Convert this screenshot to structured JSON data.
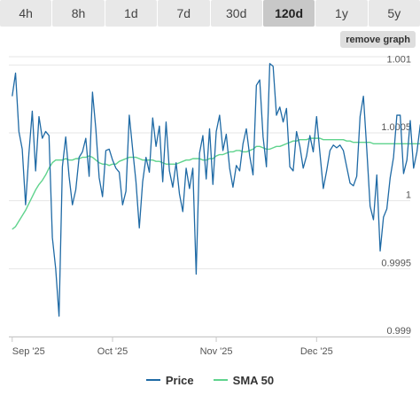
{
  "range_tabs": [
    {
      "label": "4h",
      "active": false
    },
    {
      "label": "8h",
      "active": false
    },
    {
      "label": "1d",
      "active": false
    },
    {
      "label": "7d",
      "active": false
    },
    {
      "label": "30d",
      "active": false
    },
    {
      "label": "120d",
      "active": true
    },
    {
      "label": "1y",
      "active": false
    },
    {
      "label": "5y",
      "active": false
    }
  ],
  "remove_graph_label": "remove graph",
  "legend": [
    {
      "label": "Price",
      "color": "#1f6aa5"
    },
    {
      "label": "SMA 50",
      "color": "#5fd38d"
    }
  ],
  "chart_data": {
    "type": "line",
    "x_tick_labels": [
      "Sep '25",
      "Oct '25",
      "Nov '25",
      "Dec '25"
    ],
    "x_tick_days": [
      0,
      30,
      61,
      91
    ],
    "x_range_days": [
      -1,
      119
    ],
    "y_ticks": [
      0.999,
      0.9995,
      1,
      1.0005,
      1.001
    ],
    "y_tick_labels": [
      "0.999",
      "0.9995",
      "1",
      "1.0005",
      "1.001"
    ],
    "ylim": [
      0.999,
      1.0011
    ],
    "grid": true,
    "series": [
      {
        "name": "Price",
        "color": "#1f6aa5",
        "values": [
          1.00077,
          1.00094,
          1.00051,
          1.00038,
          0.99997,
          1.00035,
          1.00066,
          1.00022,
          1.00062,
          1.00046,
          1.00051,
          1.00048,
          0.99973,
          0.9995,
          0.99915,
          1.00025,
          1.00047,
          1.00018,
          0.99997,
          1.00008,
          1.00032,
          1.00036,
          1.00046,
          1.00018,
          1.0008,
          1.00053,
          1.00017,
          1.00003,
          1.00037,
          1.00038,
          1.0003,
          1.00024,
          1.00021,
          0.99997,
          1.00007,
          1.00063,
          1.00038,
          1.00014,
          0.9998,
          1.00014,
          1.00032,
          1.00021,
          1.00061,
          1.0004,
          1.00055,
          1.00014,
          1.00058,
          1.00022,
          1.0001,
          1.00028,
          1.00005,
          0.99992,
          1.00024,
          1.00009,
          1.00024,
          0.99946,
          1.00035,
          1.00048,
          1.00016,
          1.00053,
          1.00012,
          1.00051,
          1.00063,
          1.00037,
          1.00049,
          1.00024,
          1.0001,
          1.00026,
          1.00022,
          1.00042,
          1.00053,
          1.00033,
          1.00019,
          1.00085,
          1.00089,
          1.00047,
          1.00025,
          1.00101,
          1.00099,
          1.00063,
          1.00069,
          1.00058,
          1.00068,
          1.00025,
          1.00022,
          1.00051,
          1.0004,
          1.00024,
          1.00033,
          1.00048,
          1.00036,
          1.00062,
          1.00035,
          1.00009,
          1.00022,
          1.00037,
          1.00041,
          1.00039,
          1.00041,
          1.00037,
          1.00025,
          1.00013,
          1.00011,
          1.00018,
          1.00062,
          1.00077,
          1.00038,
          0.99996,
          0.99986,
          1.00019,
          0.99963,
          0.99988,
          0.99994,
          1.00017,
          1.00032,
          1.00063,
          1.00063,
          1.0002,
          1.0003,
          1.00059,
          1.00024,
          1.00036,
          1.00056,
          1.0005,
          1.00043,
          1.00078,
          1.00015
        ]
      },
      {
        "name": "SMA 50",
        "color": "#5fd38d",
        "values": [
          0.99979,
          0.99981,
          0.99985,
          0.99989,
          0.99993,
          0.99998,
          1.00003,
          1.00008,
          1.00012,
          1.00015,
          1.00019,
          1.00024,
          1.00028,
          1.0003,
          1.0003,
          1.0003,
          1.00031,
          1.0003,
          1.0003,
          1.00031,
          1.00031,
          1.00032,
          1.00032,
          1.00033,
          1.00032,
          1.0003,
          1.00028,
          1.00027,
          1.00027,
          1.00026,
          1.00027,
          1.00027,
          1.00029,
          1.0003,
          1.00031,
          1.00032,
          1.00032,
          1.00032,
          1.00031,
          1.0003,
          1.0003,
          1.0003,
          1.0003,
          1.00029,
          1.00029,
          1.00028,
          1.00027,
          1.00027,
          1.00027,
          1.00027,
          1.00028,
          1.00029,
          1.0003,
          1.0003,
          1.00031,
          1.00031,
          1.00031,
          1.0003,
          1.0003,
          1.00031,
          1.00031,
          1.00033,
          1.00034,
          1.00034,
          1.00035,
          1.00036,
          1.00036,
          1.00037,
          1.00037,
          1.00036,
          1.00036,
          1.00037,
          1.00038,
          1.0004,
          1.0004,
          1.00039,
          1.00038,
          1.00038,
          1.00039,
          1.0004,
          1.0004,
          1.00041,
          1.00042,
          1.00043,
          1.00044,
          1.00044,
          1.00045,
          1.00045,
          1.00045,
          1.00046,
          1.00046,
          1.00046,
          1.00046,
          1.00045,
          1.00045,
          1.00045,
          1.00045,
          1.00045,
          1.00045,
          1.00045,
          1.00044,
          1.00044,
          1.00043,
          1.00043,
          1.00043,
          1.00043,
          1.00043,
          1.00043,
          1.00042,
          1.00042,
          1.00042,
          1.00042,
          1.00042,
          1.00042,
          1.00042,
          1.00042,
          1.00042,
          1.00042,
          1.00042,
          1.00042,
          1.00042,
          1.00042,
          1.00042,
          1.00042,
          1.00042,
          1.00042
        ]
      }
    ]
  }
}
